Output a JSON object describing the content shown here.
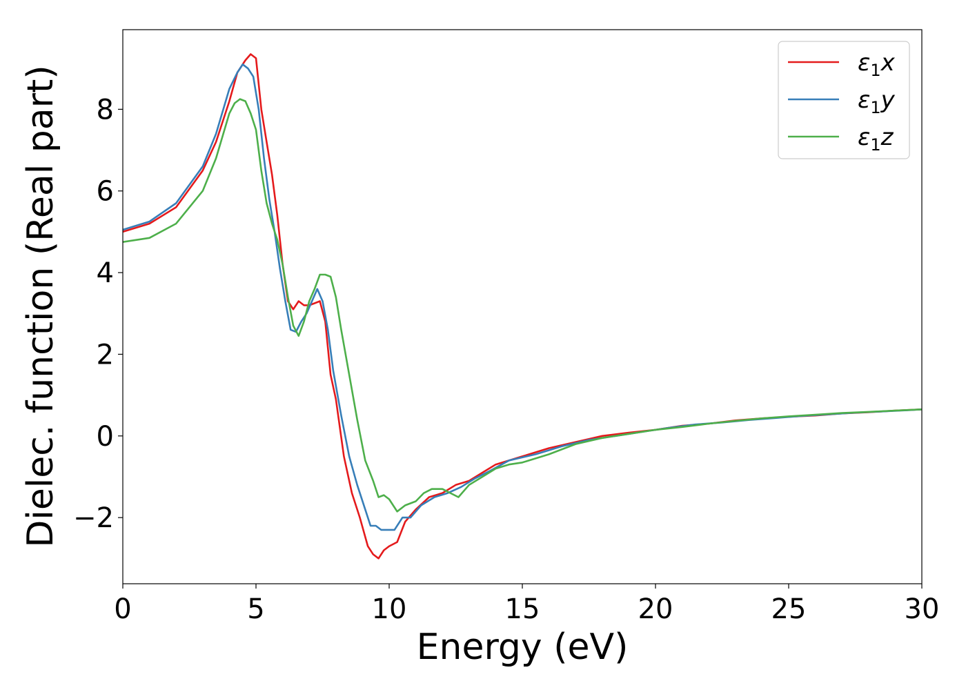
{
  "chart_data": {
    "type": "line",
    "title": "",
    "xlabel": "Energy (eV)",
    "ylabel": "Dielec. function (Real part)",
    "xlim": [
      0,
      30
    ],
    "ylim": [
      -3.62,
      9.95
    ],
    "xticks": [
      0,
      5,
      10,
      15,
      20,
      25,
      30
    ],
    "xtick_labels": [
      "0",
      "5",
      "10",
      "15",
      "20",
      "25",
      "30"
    ],
    "yticks": [
      -2,
      0,
      2,
      4,
      6,
      8
    ],
    "ytick_labels": [
      "−2",
      "0",
      "2",
      "4",
      "6",
      "8"
    ],
    "grid": false,
    "legend_position": "top-right",
    "series": [
      {
        "name": "ε₁x",
        "legend_base": "ε",
        "legend_sub": "1",
        "legend_var": "x",
        "color": "#e41a1c",
        "x": [
          0,
          1,
          2,
          3,
          3.5,
          4,
          4.3,
          4.6,
          4.8,
          5.0,
          5.2,
          5.4,
          5.6,
          5.8,
          6.0,
          6.2,
          6.4,
          6.6,
          6.8,
          7.0,
          7.2,
          7.4,
          7.6,
          7.8,
          8.0,
          8.3,
          8.6,
          8.9,
          9.2,
          9.4,
          9.6,
          9.8,
          10.0,
          10.3,
          10.6,
          11.0,
          11.5,
          12.0,
          12.5,
          13.0,
          13.5,
          14.0,
          15.0,
          16.0,
          17.0,
          18.0,
          19.0,
          20.0,
          21.0,
          22.0,
          23.0,
          24.0,
          25.0,
          26.0,
          27.0,
          28.0,
          29.0,
          30.0
        ],
        "y": [
          5.0,
          5.2,
          5.6,
          6.5,
          7.2,
          8.2,
          8.9,
          9.2,
          9.35,
          9.25,
          8.0,
          7.2,
          6.4,
          5.4,
          4.2,
          3.3,
          3.1,
          3.3,
          3.2,
          3.2,
          3.25,
          3.3,
          2.8,
          1.5,
          0.9,
          -0.5,
          -1.4,
          -2.0,
          -2.7,
          -2.9,
          -3.0,
          -2.8,
          -2.7,
          -2.6,
          -2.1,
          -1.8,
          -1.5,
          -1.4,
          -1.2,
          -1.1,
          -0.9,
          -0.7,
          -0.5,
          -0.3,
          -0.15,
          0.0,
          0.08,
          0.15,
          0.25,
          0.3,
          0.38,
          0.43,
          0.47,
          0.5,
          0.55,
          0.58,
          0.62,
          0.65
        ]
      },
      {
        "name": "ε₁y",
        "legend_base": "ε",
        "legend_sub": "1",
        "legend_var": "y",
        "color": "#377eb8",
        "x": [
          0,
          1,
          2,
          3,
          3.5,
          4,
          4.3,
          4.5,
          4.7,
          4.9,
          5.1,
          5.3,
          5.5,
          5.7,
          5.9,
          6.1,
          6.3,
          6.5,
          6.7,
          6.9,
          7.1,
          7.3,
          7.5,
          7.7,
          7.9,
          8.2,
          8.5,
          8.8,
          9.1,
          9.3,
          9.5,
          9.7,
          9.9,
          10.2,
          10.5,
          10.8,
          11.2,
          11.7,
          12.2,
          12.7,
          13.2,
          13.8,
          14.5,
          15.5,
          16.5,
          17.5,
          18.5,
          19.5,
          20.5,
          21.5,
          22.5,
          23.5,
          24.5,
          25.5,
          26.5,
          27.5,
          28.5,
          29.5,
          30.0
        ],
        "y": [
          5.05,
          5.25,
          5.7,
          6.6,
          7.4,
          8.5,
          8.9,
          9.1,
          9.0,
          8.8,
          8.0,
          6.8,
          5.8,
          5.0,
          4.1,
          3.3,
          2.6,
          2.55,
          2.8,
          3.0,
          3.3,
          3.6,
          3.3,
          2.6,
          1.6,
          0.5,
          -0.5,
          -1.2,
          -1.8,
          -2.2,
          -2.2,
          -2.3,
          -2.3,
          -2.3,
          -2.0,
          -2.0,
          -1.7,
          -1.5,
          -1.4,
          -1.25,
          -1.05,
          -0.85,
          -0.6,
          -0.45,
          -0.25,
          -0.1,
          0.0,
          0.1,
          0.2,
          0.28,
          0.33,
          0.39,
          0.44,
          0.49,
          0.53,
          0.57,
          0.6,
          0.63,
          0.65
        ]
      },
      {
        "name": "ε₁z",
        "legend_base": "ε",
        "legend_sub": "1",
        "legend_var": "z",
        "color": "#4daf4a",
        "x": [
          0,
          1,
          2,
          3,
          3.5,
          4,
          4.2,
          4.4,
          4.6,
          4.8,
          5.0,
          5.2,
          5.4,
          5.6,
          5.8,
          6.0,
          6.2,
          6.4,
          6.6,
          6.8,
          7.0,
          7.2,
          7.4,
          7.6,
          7.8,
          8.0,
          8.2,
          8.5,
          8.8,
          9.1,
          9.4,
          9.6,
          9.8,
          10.0,
          10.3,
          10.6,
          11.0,
          11.3,
          11.6,
          12.0,
          12.3,
          12.6,
          13.0,
          13.5,
          14.0,
          14.5,
          15.0,
          16.0,
          17.0,
          18.0,
          19.0,
          20.0,
          21.0,
          22.0,
          23.0,
          24.0,
          25.0,
          26.0,
          27.0,
          28.0,
          29.0,
          30.0
        ],
        "y": [
          4.75,
          4.85,
          5.2,
          6.0,
          6.8,
          7.9,
          8.15,
          8.25,
          8.2,
          7.9,
          7.5,
          6.5,
          5.7,
          5.2,
          4.8,
          4.2,
          3.4,
          2.7,
          2.45,
          2.8,
          3.3,
          3.6,
          3.95,
          3.95,
          3.9,
          3.4,
          2.6,
          1.5,
          0.4,
          -0.6,
          -1.1,
          -1.5,
          -1.45,
          -1.55,
          -1.85,
          -1.7,
          -1.6,
          -1.4,
          -1.3,
          -1.3,
          -1.4,
          -1.5,
          -1.2,
          -1.0,
          -0.8,
          -0.7,
          -0.65,
          -0.45,
          -0.2,
          -0.05,
          0.05,
          0.15,
          0.22,
          0.3,
          0.37,
          0.43,
          0.48,
          0.52,
          0.56,
          0.59,
          0.62,
          0.65
        ]
      }
    ]
  }
}
